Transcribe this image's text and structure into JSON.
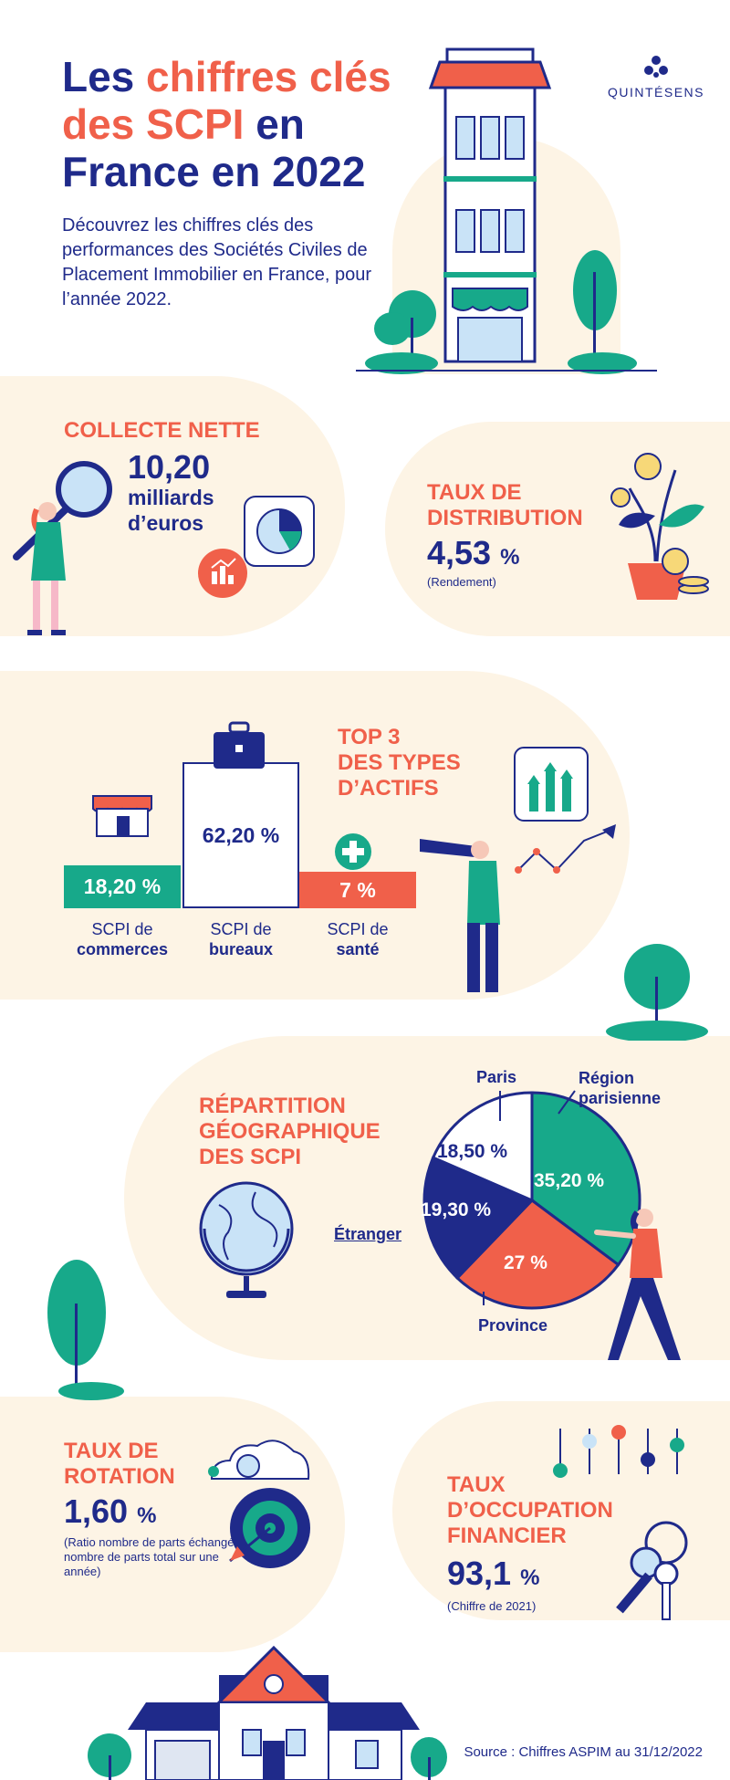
{
  "header": {
    "title_part1": "Les ",
    "title_part2": "chiffres clés",
    "title_part3": "des SCPI",
    "title_part4": " en",
    "title_part5": "France en 2022",
    "intro": "Découvrez les chiffres clés des performances des Sociétés Civiles de Placement Immobilier en France, pour l’année 2022.",
    "logo_text": "QUINTÉSENS"
  },
  "collecte": {
    "heading": "COLLECTE NETTE",
    "value": "10,20",
    "unit_line1": "milliards",
    "unit_line2": "d’euros"
  },
  "distribution": {
    "heading_line1": "TAUX DE",
    "heading_line2": "DISTRIBUTION",
    "value": "4,53",
    "percent": "%",
    "note": "(Rendement)"
  },
  "top3": {
    "heading_line1": "TOP 3",
    "heading_line2": "DES TYPES",
    "heading_line3": "D’ACTIFS",
    "bars": [
      {
        "value_label": "18,20 %",
        "value": 18.2,
        "label_line1": "SCPI de",
        "label_line2": "commerces",
        "color": "#17a98a"
      },
      {
        "value_label": "62,20 %",
        "value": 62.2,
        "label_line1": "SCPI de",
        "label_line2": "bureaux",
        "color": "#ffffff"
      },
      {
        "value_label": "7 %",
        "value": 7,
        "label_line1": "SCPI de",
        "label_line2": "santé",
        "color": "#f0604a"
      }
    ]
  },
  "repartition": {
    "heading_line1": "RÉPARTITION",
    "heading_line2": "GÉOGRAPHIQUE",
    "heading_line3": "DES SCPI",
    "slices": [
      {
        "name": "Région parisienne",
        "name_line1": "Région",
        "name_line2": "parisienne",
        "value": 35.2,
        "value_label": "35,20 %",
        "color": "#17a98a"
      },
      {
        "name": "Province",
        "value": 27,
        "value_label": "27 %",
        "color": "#f0604a"
      },
      {
        "name": "Étranger",
        "value": 19.3,
        "value_label": "19,30 %",
        "color": "#1f2a8a"
      },
      {
        "name": "Paris",
        "value": 18.5,
        "value_label": "18,50 %",
        "color": "#ffffff"
      }
    ]
  },
  "rotation": {
    "heading_line1": "TAUX DE",
    "heading_line2": "ROTATION",
    "value": "1,60",
    "percent": "%",
    "note": "(Ratio nombre de parts échangé / nombre de parts total sur une année)"
  },
  "occupation": {
    "heading_line1": "TAUX",
    "heading_line2": "D’OCCUPATION",
    "heading_line3": "FINANCIER",
    "value": "93,1",
    "percent": "%",
    "note": "(Chiffre de 2021)"
  },
  "footer": {
    "source": "Source : Chiffres ASPIM au 31/12/2022"
  },
  "colors": {
    "navy": "#1f2a8a",
    "coral": "#f0604a",
    "teal": "#17a98a",
    "beige": "#fdf4e5"
  }
}
